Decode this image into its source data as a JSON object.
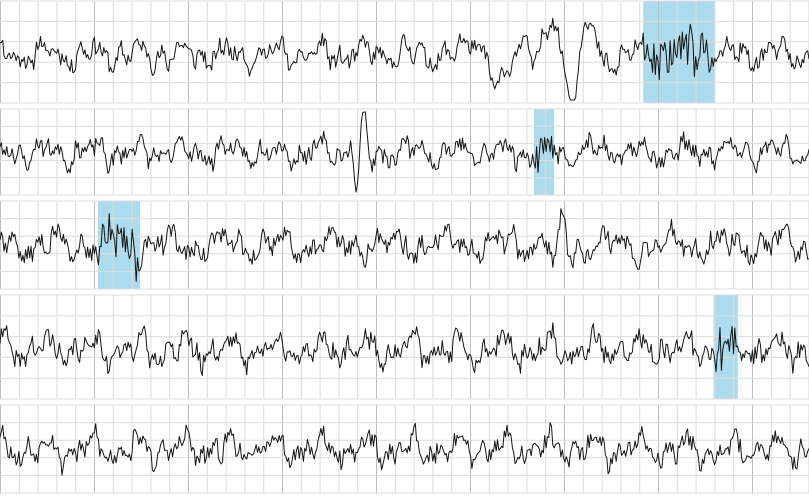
{
  "colors": {
    "background": "#ffffff",
    "grid_minor": "#dcdcdc",
    "grid_major": "#bdbdbd",
    "trace": "#141414",
    "highlight": "#abdbec"
  },
  "chart_data": {
    "type": "line",
    "title": "",
    "xlabel": "",
    "ylabel": "",
    "grid": true,
    "legend": "none",
    "x_range": [
      0,
      100
    ],
    "y_range": [
      -1,
      1
    ],
    "channels": [
      {
        "baseline": -0.05,
        "amplitude": 0.35,
        "seed": 11,
        "events": [
          {
            "x": 63.5,
            "width": 3.5,
            "amp": 1.9
          },
          {
            "x": 67.0,
            "width": 3.5,
            "amp": 1.4
          },
          {
            "x": 71.5,
            "width": 2.5,
            "amp": 1.5
          }
        ],
        "highlights": [
          {
            "x_start": 79.5,
            "x_end": 88.3
          }
        ]
      },
      {
        "baseline": 0.0,
        "amplitude": 0.4,
        "seed": 23,
        "events": [
          {
            "x": 44.5,
            "width": 1.0,
            "amp": 1.6
          }
        ],
        "highlights": [
          {
            "x_start": 66.0,
            "x_end": 68.5
          }
        ]
      },
      {
        "baseline": 0.0,
        "amplitude": 0.45,
        "seed": 37,
        "events": [
          {
            "x": 69.0,
            "width": 1.2,
            "amp": 1.3
          }
        ],
        "highlights": [
          {
            "x_start": 12.1,
            "x_end": 17.3
          }
        ]
      },
      {
        "baseline": -0.05,
        "amplitude": 0.4,
        "seed": 41,
        "events": [],
        "highlights": [
          {
            "x_start": 88.2,
            "x_end": 91.2
          }
        ]
      },
      {
        "baseline": 0.0,
        "amplitude": 0.45,
        "seed": 53,
        "events": [],
        "highlights": []
      }
    ]
  }
}
